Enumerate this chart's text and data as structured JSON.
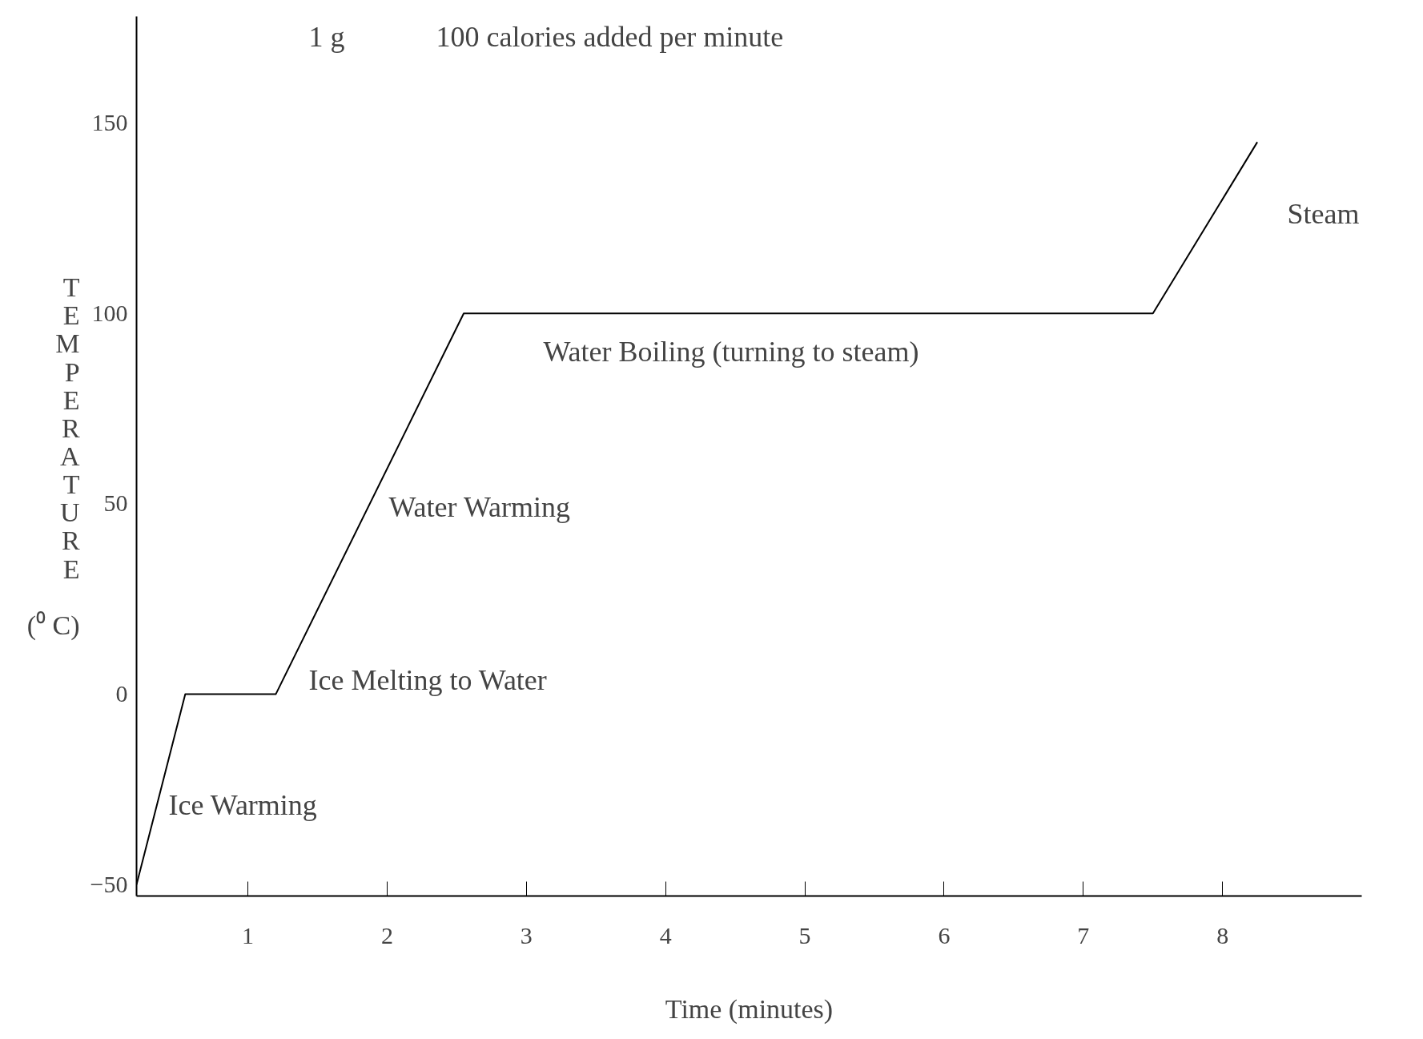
{
  "chart_data": {
    "type": "line",
    "xlabel": "Time (minutes)",
    "ylabel": "TEMPERATURE (⁰ C)",
    "x": [
      0.2,
      0.55,
      1.2,
      2.55,
      7.5,
      8.25
    ],
    "series": [
      {
        "color": "#000000",
        "values": [
          -50,
          0,
          0,
          100,
          100,
          145
        ]
      }
    ],
    "xlim": [
      0.2,
      9
    ],
    "ylim": [
      -53,
      178
    ],
    "xticks": [
      1,
      2,
      3,
      4,
      5,
      6,
      7,
      8
    ],
    "yticks": [
      -50,
      0,
      50,
      100,
      150
    ],
    "grid": false,
    "marker": "none",
    "line_style": "solid",
    "annotations": [
      "1 g",
      "100 calories added per minute",
      "Ice Warming",
      "Ice Melting to Water",
      "Water Warming",
      "Water Boiling (turning to steam)",
      "Steam"
    ]
  }
}
